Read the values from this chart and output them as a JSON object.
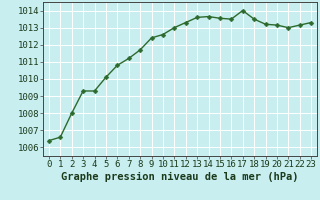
{
  "x": [
    0,
    1,
    2,
    3,
    4,
    5,
    6,
    7,
    8,
    9,
    10,
    11,
    12,
    13,
    14,
    15,
    16,
    17,
    18,
    19,
    20,
    21,
    22,
    23
  ],
  "y": [
    1006.4,
    1006.6,
    1008.0,
    1009.3,
    1009.3,
    1010.1,
    1010.8,
    1011.2,
    1011.7,
    1012.4,
    1012.6,
    1013.0,
    1013.3,
    1013.6,
    1013.65,
    1013.55,
    1013.5,
    1014.0,
    1013.5,
    1013.2,
    1013.15,
    1013.0,
    1013.15,
    1013.3
  ],
  "line_color": "#2d6a2d",
  "marker_color": "#2d6a2d",
  "bg_color": "#c8eef0",
  "grid_color": "#ffffff",
  "xlabel": "Graphe pression niveau de la mer (hPa)",
  "ylim_bottom": 1005.5,
  "ylim_top": 1014.5,
  "yticks": [
    1006,
    1007,
    1008,
    1009,
    1010,
    1011,
    1012,
    1013,
    1014
  ],
  "xticks": [
    0,
    1,
    2,
    3,
    4,
    5,
    6,
    7,
    8,
    9,
    10,
    11,
    12,
    13,
    14,
    15,
    16,
    17,
    18,
    19,
    20,
    21,
    22,
    23
  ],
  "xlabel_fontsize": 7.5,
  "tick_fontsize": 6.5,
  "linewidth": 1.0,
  "markersize": 2.5
}
